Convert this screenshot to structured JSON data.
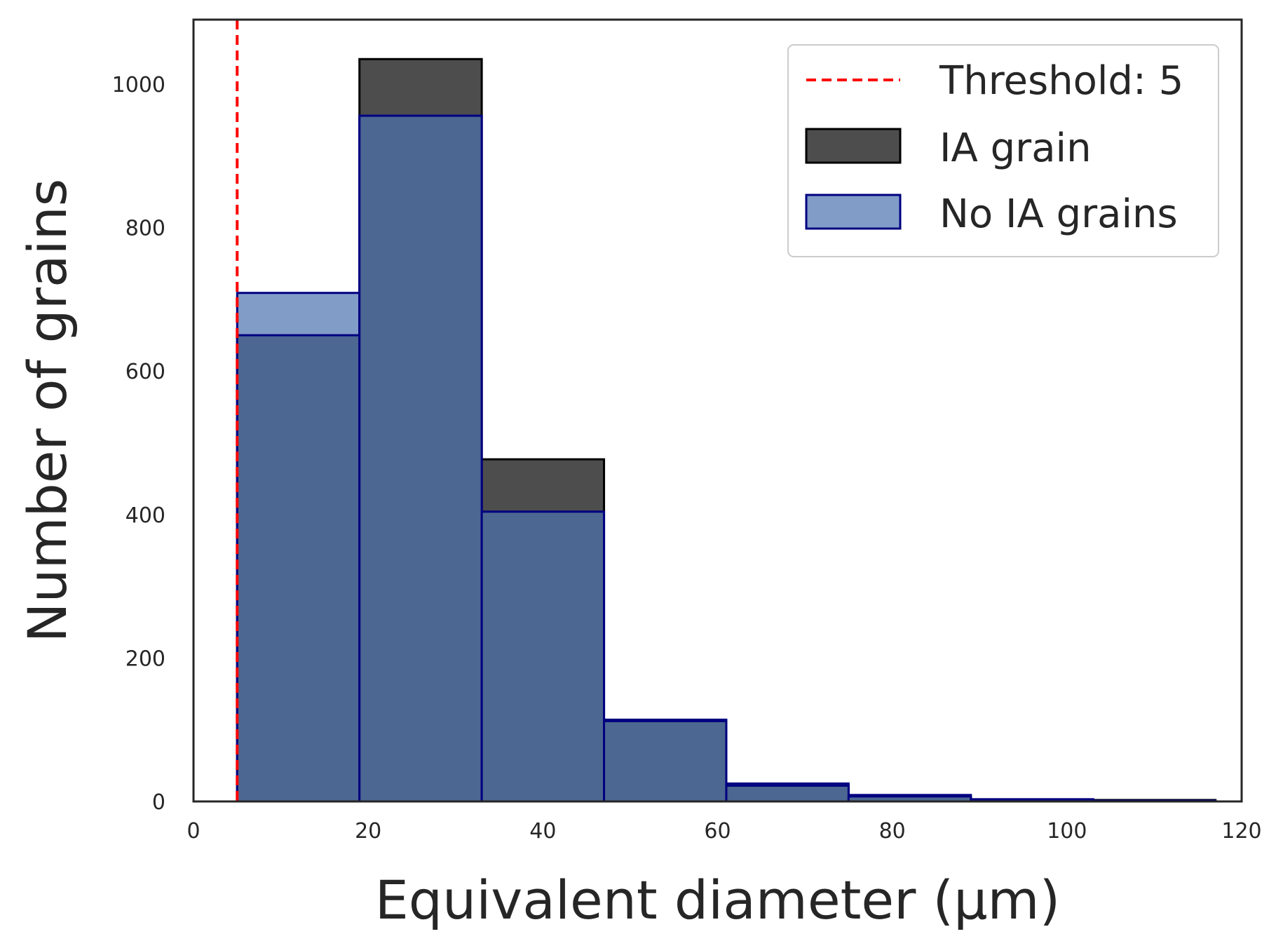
{
  "chart_data": {
    "type": "bar",
    "title": "",
    "xlabel": "Equivalent diameter (µm)",
    "ylabel": "Number of grains",
    "xlim": [
      0,
      120
    ],
    "ylim": [
      0,
      1090
    ],
    "xticks": [
      0,
      20,
      40,
      60,
      80,
      100,
      120
    ],
    "yticks": [
      0,
      200,
      400,
      600,
      800,
      1000
    ],
    "grid": false,
    "legend_position": "top-right",
    "bin_edges": [
      5,
      19,
      33,
      47,
      61,
      75,
      89,
      103,
      117
    ],
    "threshold": {
      "label": "Threshold: 5",
      "x": 5,
      "color": "#ff0000",
      "style": "dashed"
    },
    "series": [
      {
        "name": "IA grain",
        "fill": "#4d4d4d",
        "edge": "#000000",
        "values": [
          650,
          1035,
          477,
          112,
          22,
          7,
          3,
          2
        ]
      },
      {
        "name": "No IA grains",
        "fill": "#819cc7",
        "edge": "#000080",
        "values": [
          709,
          956,
          404,
          114,
          25,
          9,
          3,
          1
        ]
      }
    ],
    "overlap_fill": "#4c6791"
  }
}
